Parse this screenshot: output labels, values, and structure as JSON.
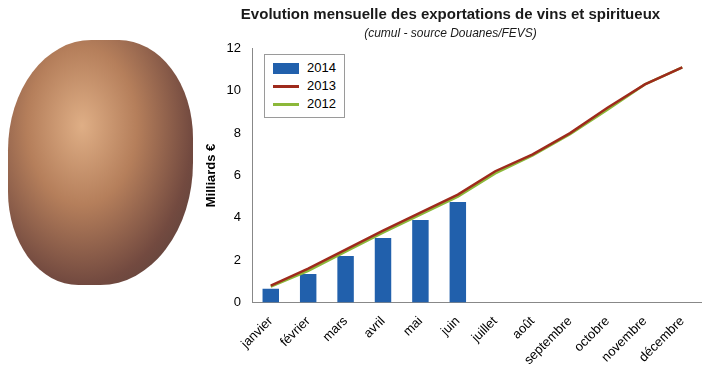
{
  "chart_data": {
    "type": "bar",
    "title": "Evolution mensuelle des exportations de vins et spiritueux",
    "subtitle": "(cumul - source Douanes/FEVS)",
    "y_label": "Milliards €",
    "categories": [
      "janvier",
      "février",
      "mars",
      "avril",
      "mai",
      "juin",
      "juillet",
      "août",
      "septembre",
      "octobre",
      "novembre",
      "décembre"
    ],
    "series": [
      {
        "name": "2014",
        "type": "bar",
        "color": "#2160ac",
        "values": [
          0.65,
          1.35,
          2.2,
          3.05,
          3.9,
          4.75,
          null,
          null,
          null,
          null,
          null,
          null
        ]
      },
      {
        "name": "2013",
        "type": "line",
        "color": "#9e2a1c",
        "values": [
          0.8,
          1.6,
          2.5,
          3.4,
          4.25,
          5.1,
          6.2,
          7.0,
          8.0,
          9.2,
          10.3,
          11.1
        ]
      },
      {
        "name": "2012",
        "type": "line",
        "color": "#8cb83a",
        "values": [
          0.75,
          1.5,
          2.4,
          3.3,
          4.15,
          5.0,
          6.1,
          6.95,
          7.95,
          9.1,
          10.3,
          11.1
        ]
      }
    ],
    "ylim": [
      0,
      12
    ],
    "yticks": [
      0,
      2,
      4,
      6,
      8,
      10,
      12
    ],
    "grid": false,
    "legend": "upper left"
  }
}
